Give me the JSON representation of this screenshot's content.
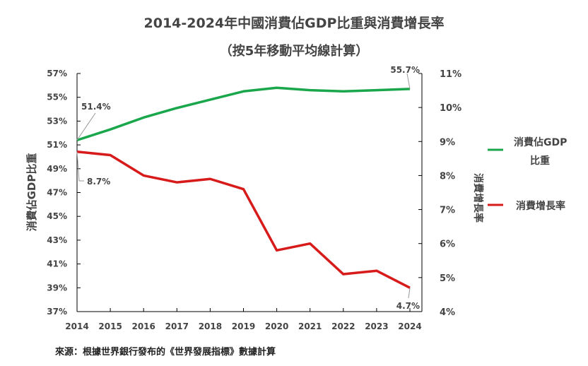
{
  "chart_data": {
    "type": "line",
    "title": "2014-2024年中國消費佔GDP比重與消費增長率",
    "subtitle": "（按5年移動平均線計算）",
    "x": [
      2014,
      2015,
      2016,
      2017,
      2018,
      2019,
      2020,
      2021,
      2022,
      2023,
      2024
    ],
    "ylabel_left": "消費佔GDP比重",
    "ylabel_right": "消費增長率",
    "ylim_left": [
      37,
      57
    ],
    "yticks_left": [
      "57%",
      "55%",
      "53%",
      "51%",
      "49%",
      "47%",
      "45%",
      "43%",
      "41%",
      "39%",
      "37%"
    ],
    "ylim_right": [
      4,
      11
    ],
    "yticks_right": [
      "11%",
      "10%",
      "9%",
      "8%",
      "7%",
      "6%",
      "5%",
      "4%"
    ],
    "grid": false,
    "legend": "right",
    "series": [
      {
        "name": "消費佔GDP比重",
        "axis": "left",
        "color": "#1aa64b",
        "values": [
          51.4,
          52.3,
          53.3,
          54.1,
          54.8,
          55.5,
          55.8,
          55.6,
          55.5,
          55.6,
          55.7
        ]
      },
      {
        "name": "消費增長率",
        "axis": "right",
        "color": "#d71a1a",
        "values": [
          8.7,
          8.6,
          8.0,
          7.8,
          7.9,
          7.6,
          5.8,
          6.0,
          5.1,
          5.2,
          4.7
        ]
      }
    ],
    "annotations": [
      "51.4%",
      "55.7%",
      "8.7%",
      "4.7%"
    ],
    "source": "來源：根據世界銀行發布的《世界發展指標》數據計算"
  }
}
